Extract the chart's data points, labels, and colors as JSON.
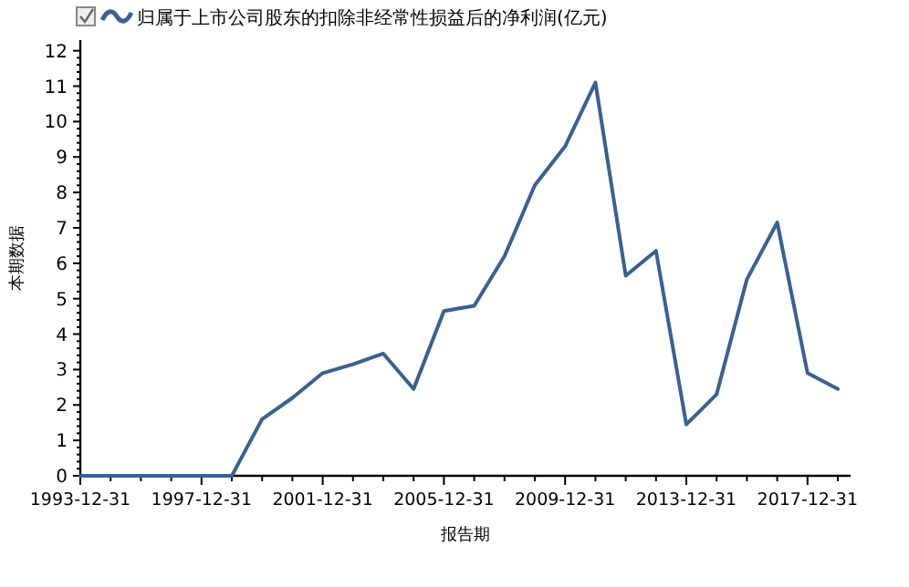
{
  "chart_data": {
    "type": "line",
    "xlabel": "报告期",
    "ylabel": "本期数据",
    "legend": "top left",
    "categories": [
      "1993-12-31",
      null,
      null,
      null,
      "1997-12-31",
      null,
      null,
      null,
      "2001-12-31",
      null,
      null,
      null,
      "2005-12-31",
      null,
      null,
      null,
      "2009-12-31",
      null,
      null,
      null,
      "2013-12-31",
      null,
      null,
      null,
      "2017-12-31",
      null
    ],
    "series": [
      {
        "name": "归属于上市公司股东的扣除非经常性损益后的净利润(亿元)",
        "color": "#3a6090",
        "values": [
          0,
          0,
          0,
          0,
          0,
          0,
          1.6,
          2.2,
          2.9,
          3.15,
          3.45,
          2.45,
          4.65,
          4.8,
          6.2,
          8.2,
          9.3,
          11.1,
          5.65,
          6.35,
          1.45,
          2.3,
          5.55,
          7.15,
          2.9,
          2.45
        ]
      }
    ],
    "ylim": [
      0,
      12.3
    ],
    "yticks": [
      0,
      1,
      2,
      3,
      4,
      5,
      6,
      7,
      8,
      9,
      10,
      11,
      12
    ],
    "grid": false,
    "marker": "none",
    "line_style": "solid"
  }
}
